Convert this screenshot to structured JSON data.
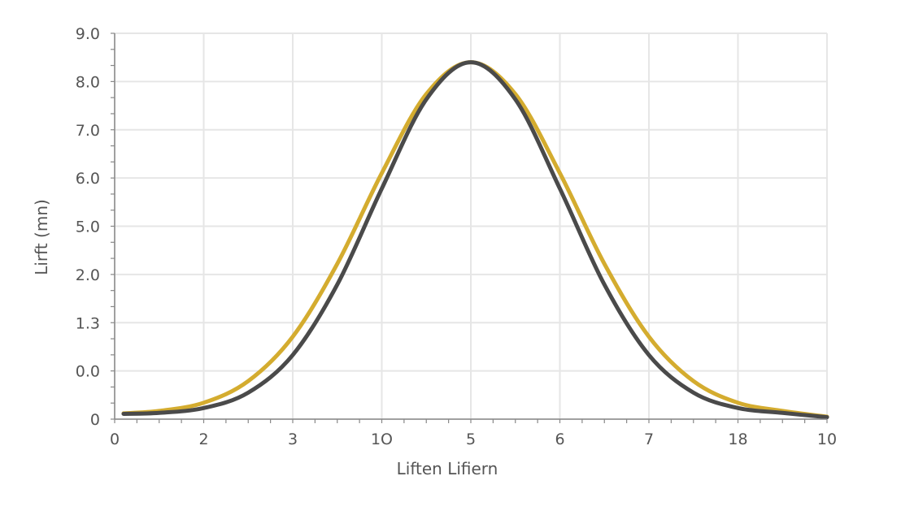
{
  "chart_data": {
    "type": "line",
    "title": "",
    "xlabel": "Liften Lifiern",
    "ylabel": "Lirft (mn)",
    "x_tick_labels": [
      "0",
      "2",
      "3",
      "1O",
      "5",
      "6",
      "7",
      "18",
      "10"
    ],
    "y_tick_labels": [
      "0",
      "0.0",
      "1.3",
      "2.0",
      "5.0",
      "6.0",
      "7.0",
      "8.0",
      "9.0"
    ],
    "note": "x and y values are in tick-index units (tick labels are non-linear)",
    "xlim": [
      0,
      8
    ],
    "ylim": [
      0,
      8
    ],
    "grid": true,
    "x": [
      0.1,
      0.5,
      1,
      1.5,
      2,
      2.5,
      3,
      3.5,
      4,
      4.5,
      5,
      5.5,
      6,
      6.5,
      7,
      7.5,
      8
    ],
    "series": [
      {
        "name": "gold",
        "color": "#d4ac2f",
        "values": [
          0.12,
          0.17,
          0.34,
          0.79,
          1.71,
          3.22,
          5.1,
          6.74,
          7.4,
          6.74,
          5.1,
          3.22,
          1.71,
          0.79,
          0.34,
          0.17,
          0.05
        ]
      },
      {
        "name": "dark",
        "color": "#4a4a4a",
        "values": [
          0.11,
          0.13,
          0.23,
          0.55,
          1.33,
          2.79,
          4.78,
          6.63,
          7.4,
          6.63,
          4.78,
          2.79,
          1.33,
          0.55,
          0.23,
          0.13,
          0.04
        ]
      }
    ]
  }
}
